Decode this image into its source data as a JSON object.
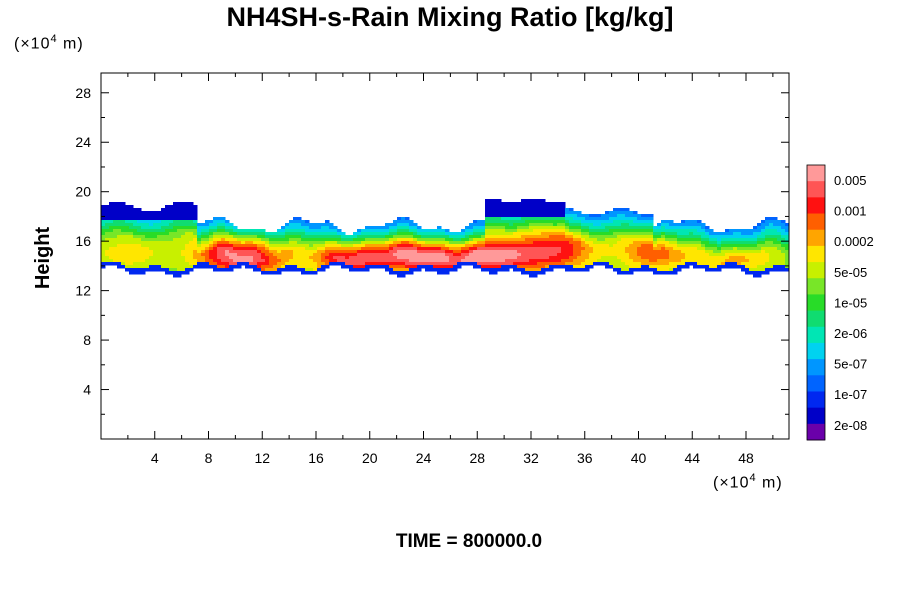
{
  "title": "NH4SH-s-Rain Mixing Ratio [kg/kg]",
  "y_unit": {
    "prefix": "(×10",
    "exp": "4",
    "suffix": " m)"
  },
  "x_unit": {
    "prefix": "(×10",
    "exp": "4",
    "suffix": " m)"
  },
  "time_label": "TIME = 800000.0",
  "chart_data": {
    "type": "heatmap",
    "title": "NH4SH-s-Rain Mixing Ratio [kg/kg]",
    "xlabel": "",
    "ylabel": "Height",
    "x_unit": "×10^4 m",
    "y_unit": "×10^4 m",
    "xlim": [
      0,
      51.2
    ],
    "ylim": [
      0,
      29.6
    ],
    "x_ticks": [
      4,
      8,
      12,
      16,
      20,
      24,
      28,
      32,
      36,
      40,
      44,
      48
    ],
    "y_ticks": [
      4,
      8,
      12,
      16,
      20,
      24,
      28
    ],
    "colorbar": {
      "labels": [
        "0.005",
        "0.001",
        "0.0002",
        "5e-05",
        "1e-05",
        "2e-06",
        "5e-07",
        "1e-07",
        "2e-08"
      ],
      "colors": [
        "#ff9999",
        "#ff5555",
        "#ff1111",
        "#ff5f00",
        "#ffa500",
        "#ffe600",
        "#c8f000",
        "#78e628",
        "#28dc28",
        "#10dc70",
        "#00e6b4",
        "#00d2f0",
        "#0096ff",
        "#0064ff",
        "#0028f0",
        "#0000c8",
        "#6a00aa"
      ],
      "legend_position": "right"
    },
    "field_description": "cloud layer between heights ~13 and ~19.5 (x10^4 m) across full domain",
    "annotation": "TIME = 800000.0"
  }
}
